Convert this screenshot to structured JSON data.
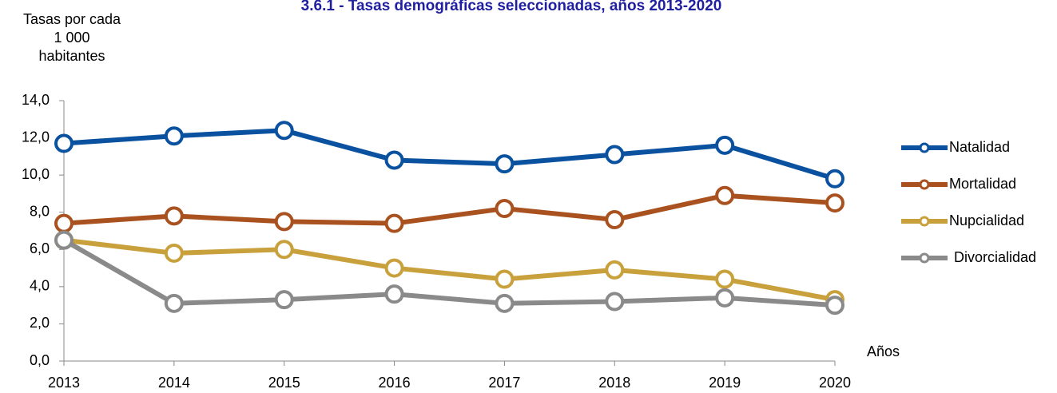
{
  "chart_data": {
    "type": "line",
    "title": "3.6.1 -  Tasas demográficas seleccionadas, años 2013-2020",
    "y_label": [
      "Tasas por cada",
      "1 000",
      "habitantes"
    ],
    "x_label": "Años",
    "categories": [
      "2013",
      "2014",
      "2015",
      "2016",
      "2017",
      "2018",
      "2019",
      "2020"
    ],
    "series": [
      {
        "name": "Natalidad",
        "color": "#0a52a0",
        "values": [
          11.7,
          12.1,
          12.4,
          10.8,
          10.6,
          11.1,
          11.6,
          9.8
        ]
      },
      {
        "name": "Mortalidad",
        "color": "#a9521f",
        "values": [
          7.4,
          7.8,
          7.5,
          7.4,
          8.2,
          7.6,
          8.9,
          8.5
        ]
      },
      {
        "name": "Nupcialidad",
        "color": "#c9a13c",
        "values": [
          6.5,
          5.8,
          6.0,
          5.0,
          4.4,
          4.9,
          4.4,
          3.3
        ]
      },
      {
        "name": "Divorcialidad",
        "color": "#8a8a8a",
        "values": [
          6.5,
          3.1,
          3.3,
          3.6,
          3.1,
          3.2,
          3.4,
          3.0
        ]
      }
    ],
    "ylim": [
      0,
      14
    ],
    "yticks": [
      {
        "value": 0,
        "label": "0,0"
      },
      {
        "value": 2,
        "label": "2,0"
      },
      {
        "value": 4,
        "label": "4,0"
      },
      {
        "value": 6,
        "label": "6,0"
      },
      {
        "value": 8,
        "label": "8,0"
      },
      {
        "value": 10,
        "label": "10,0"
      },
      {
        "value": 12,
        "label": "12,0"
      },
      {
        "value": 14,
        "label": "14,0"
      }
    ],
    "grid": false,
    "legend": "right"
  }
}
